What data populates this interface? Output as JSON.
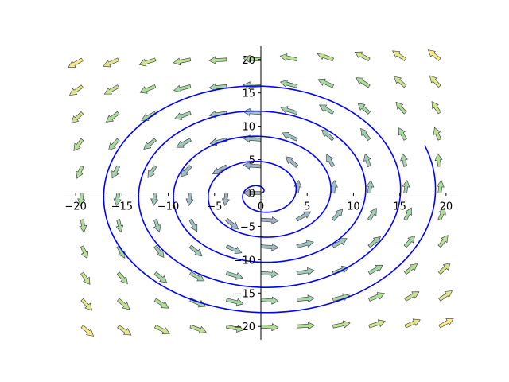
{
  "chart_data": {
    "type": "vector-field",
    "title": "",
    "xlabel": "",
    "ylabel": "",
    "xlim": [
      -21.3,
      21.3
    ],
    "ylim": [
      -22.0,
      22.0
    ],
    "xticks": [
      -20,
      -15,
      -10,
      -5,
      0,
      5,
      10,
      15,
      20
    ],
    "yticks": [
      -20,
      -15,
      -10,
      -5,
      0,
      5,
      10,
      15,
      20
    ],
    "xtick_labels": [
      "−20",
      "−15",
      "−10",
      "−5",
      "0",
      "5",
      "10",
      "15",
      "20"
    ],
    "ytick_labels": [
      "−20",
      "−15",
      "−10",
      "−5",
      "0",
      "5",
      "10",
      "15",
      "20"
    ],
    "axes_through_origin": true,
    "grid": false,
    "field": {
      "description_formula": "u = -y/r + 0.1*x/r, v = x/r + 0.1*y/r (normalized)",
      "x_samples": [
        -19.3,
        -15.4,
        -11.4,
        -7.6,
        -3.7,
        0,
        3.9,
        7.8,
        11.7,
        15.6,
        19.3
      ],
      "y_samples": [
        -20,
        -16,
        -12,
        -8,
        -4,
        0,
        4,
        8,
        12,
        16,
        20
      ],
      "arrow_length": 1.9,
      "colormap": [
        "#a3a3c7",
        "#9ec4c2",
        "#a8dc9c",
        "#ffee88"
      ]
    },
    "spiral": {
      "formula": "r = b * theta",
      "b": 0.6,
      "theta_max": 31.8,
      "color": "#0000ff"
    }
  }
}
